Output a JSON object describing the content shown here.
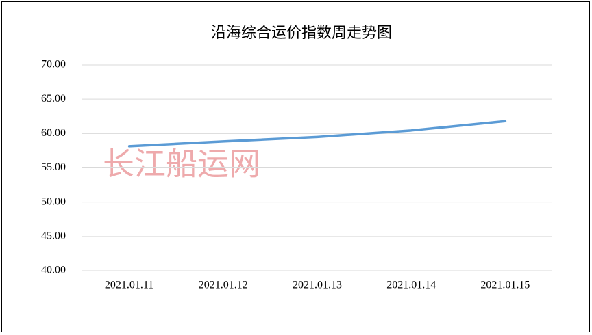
{
  "chart_data": {
    "type": "line",
    "title": "沿海综合运价指数周走势图",
    "watermark": "长江船运网",
    "categories": [
      "2021.01.11",
      "2021.01.12",
      "2021.01.13",
      "2021.01.14",
      "2021.01.15"
    ],
    "values": [
      58.15,
      58.85,
      59.5,
      60.45,
      61.8
    ],
    "color": "#5b9bd5",
    "ylim": [
      40,
      70
    ],
    "yticks": [
      {
        "value": 40,
        "label": "40.00"
      },
      {
        "value": 45,
        "label": "45.00"
      },
      {
        "value": 50,
        "label": "50.00"
      },
      {
        "value": 55,
        "label": "55.00"
      },
      {
        "value": 60,
        "label": "60.00"
      },
      {
        "value": 65,
        "label": "65.00"
      },
      {
        "value": 70,
        "label": "70.00"
      }
    ],
    "grid": true
  }
}
